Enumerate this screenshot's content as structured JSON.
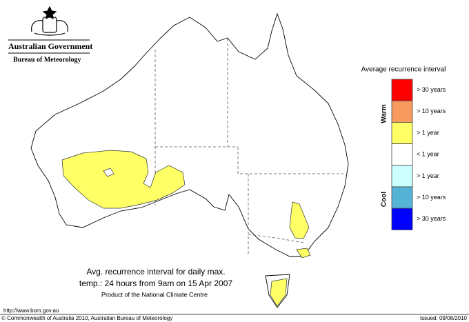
{
  "header": {
    "government": "Australian Government",
    "agency": "Bureau of Meteorology"
  },
  "legend": {
    "title": "Average recurrence interval",
    "warm_label": "Warm",
    "cool_label": "Cool",
    "items": [
      {
        "label": "> 30 years",
        "color": "#ff0000"
      },
      {
        "label": "> 10 years",
        "color": "#f79a60"
      },
      {
        "label": "> 1 year",
        "color": "#ffff66"
      },
      {
        "label": "< 1 year",
        "color": "#ffffff"
      },
      {
        "label": "> 1 year",
        "color": "#ccffff"
      },
      {
        "label": "> 10 years",
        "color": "#55b4d6"
      },
      {
        "label": "> 30 years",
        "color": "#0000ff"
      }
    ]
  },
  "caption": {
    "lines": [
      "Avg. recurrence interval for daily max.",
      "temp.: 24 hours from 9am on 15 Apr 2007",
      "Product of the National Climate Centre"
    ]
  },
  "footer": {
    "url": "http://www.bom.gov.au",
    "copyright": "© Commonwealth of Australia 2010, Australian Bureau of Meteorology",
    "issued": "Issued: 09/08/2010"
  }
}
